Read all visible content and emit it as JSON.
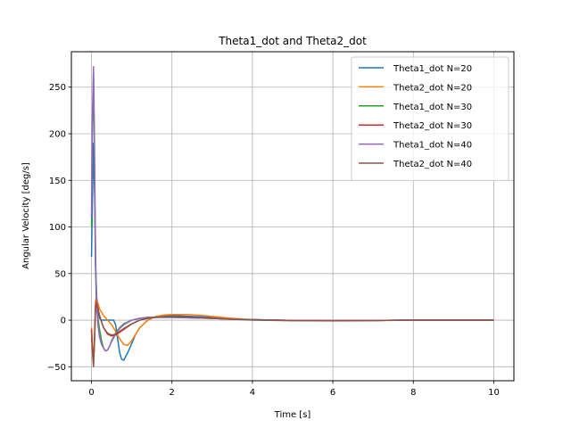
{
  "chart_data": {
    "type": "line",
    "title": "Theta1_dot and Theta2_dot",
    "xlabel": "Time [s]",
    "ylabel": "Angular Velocity [deg/s]",
    "xlim": [
      -0.5,
      10.5
    ],
    "ylim": [
      -65,
      288
    ],
    "xticks": [
      0,
      2,
      4,
      6,
      8,
      10
    ],
    "yticks": [
      -50,
      0,
      50,
      100,
      150,
      200,
      250
    ],
    "grid": true,
    "legend_position": "top-right",
    "series": [
      {
        "name": "Theta1_dot N=20",
        "color": "#1f77b4",
        "x": [
          0,
          0.02,
          0.05,
          0.08,
          0.1,
          0.13,
          0.16,
          0.2,
          0.25,
          0.3,
          0.35,
          0.4,
          0.5,
          0.55,
          0.6,
          0.65,
          0.7,
          0.75,
          0.8,
          0.9,
          1.0,
          1.1,
          1.2,
          1.4,
          1.6,
          1.8,
          2.0,
          2.5,
          3.0,
          3.5,
          4.0,
          5.0,
          6.0,
          7.0,
          8.0,
          9.0,
          10.0
        ],
        "y": [
          68,
          120,
          190,
          130,
          60,
          25,
          10,
          2,
          0,
          0,
          0,
          0,
          0,
          0,
          -5,
          -20,
          -35,
          -42,
          -43,
          -35,
          -25,
          -15,
          -8,
          0,
          4,
          5,
          5,
          4,
          3,
          1,
          0,
          -0.5,
          -0.5,
          -0.3,
          0,
          0,
          0
        ]
      },
      {
        "name": "Theta2_dot N=20",
        "color": "#ff7f0e",
        "x": [
          0,
          0.02,
          0.05,
          0.08,
          0.1,
          0.12,
          0.15,
          0.2,
          0.3,
          0.4,
          0.5,
          0.6,
          0.7,
          0.8,
          0.9,
          1.0,
          1.1,
          1.2,
          1.4,
          1.6,
          1.8,
          2.0,
          2.4,
          2.8,
          3.0,
          3.5,
          4.0,
          5.0,
          6.0,
          7.0,
          8.0,
          9.0,
          10.0
        ],
        "y": [
          -8,
          -25,
          -45,
          -10,
          20,
          25,
          20,
          12,
          5,
          0,
          -5,
          -12,
          -20,
          -26,
          -27,
          -22,
          -15,
          -8,
          0,
          4,
          5.5,
          6,
          6,
          5,
          4,
          2,
          0.5,
          -0.5,
          -0.8,
          -0.5,
          0,
          0,
          0
        ]
      },
      {
        "name": "Theta1_dot N=30",
        "color": "#2ca02c",
        "x": [
          0,
          0.02,
          0.05,
          0.08,
          0.1,
          0.12,
          0.15,
          0.2,
          0.25,
          0.3,
          0.35,
          0.4,
          0.45,
          0.5,
          0.6,
          0.7,
          0.8,
          1.0,
          1.2,
          1.4,
          1.6,
          1.8,
          2.0,
          2.5,
          3.0,
          3.5,
          4.0,
          5.0,
          6.0,
          7.0,
          8.0,
          9.0,
          10.0
        ],
        "y": [
          100,
          200,
          265,
          150,
          60,
          20,
          5,
          -10,
          -22,
          -30,
          -33,
          -32,
          -28,
          -22,
          -14,
          -8,
          -4,
          0,
          2,
          3,
          3,
          3,
          3,
          2.5,
          2,
          1,
          0.5,
          -0.3,
          -0.5,
          -0.3,
          0,
          0,
          0
        ]
      },
      {
        "name": "Theta2_dot N=30",
        "color": "#d62728",
        "x": [
          0,
          0.02,
          0.05,
          0.08,
          0.1,
          0.12,
          0.15,
          0.2,
          0.25,
          0.3,
          0.4,
          0.5,
          0.6,
          0.7,
          0.8,
          1.0,
          1.2,
          1.4,
          1.6,
          1.8,
          2.0,
          2.5,
          3.0,
          3.5,
          4.0,
          5.0,
          6.0,
          7.0,
          8.0,
          9.0,
          10.0
        ],
        "y": [
          -10,
          -30,
          -48,
          -15,
          15,
          20,
          15,
          5,
          -2,
          -8,
          -15,
          -17,
          -16,
          -13,
          -10,
          -4,
          0,
          2,
          3,
          3.5,
          3.5,
          3,
          2,
          1,
          0.5,
          -0.3,
          -0.5,
          -0.3,
          0,
          0,
          0
        ]
      },
      {
        "name": "Theta1_dot N=40",
        "color": "#9467bd",
        "x": [
          0,
          0.02,
          0.05,
          0.07,
          0.09,
          0.11,
          0.13,
          0.16,
          0.2,
          0.25,
          0.3,
          0.35,
          0.4,
          0.45,
          0.5,
          0.6,
          0.7,
          0.8,
          1.0,
          1.2,
          1.4,
          1.6,
          1.8,
          2.0,
          2.5,
          3.0,
          3.5,
          4.0,
          5.0,
          6.0,
          7.0,
          8.0,
          9.0,
          10.0
        ],
        "y": [
          110,
          215,
          272,
          210,
          110,
          50,
          15,
          -5,
          -18,
          -26,
          -30,
          -33,
          -32,
          -28,
          -23,
          -15,
          -9,
          -5,
          0,
          2,
          3,
          3,
          3,
          3,
          2.5,
          2,
          1,
          0.5,
          -0.3,
          -0.5,
          -0.3,
          0,
          0,
          0
        ]
      },
      {
        "name": "Theta2_dot N=40",
        "color": "#8c564b",
        "x": [
          0,
          0.02,
          0.05,
          0.08,
          0.1,
          0.12,
          0.15,
          0.2,
          0.25,
          0.3,
          0.4,
          0.5,
          0.6,
          0.7,
          0.8,
          1.0,
          1.2,
          1.4,
          1.6,
          1.8,
          2.0,
          2.5,
          3.0,
          3.5,
          4.0,
          5.0,
          6.0,
          7.0,
          8.0,
          9.0,
          10.0
        ],
        "y": [
          -12,
          -32,
          -50,
          -18,
          12,
          18,
          14,
          5,
          -2,
          -8,
          -14,
          -16,
          -15,
          -12,
          -9,
          -4,
          0,
          2,
          3,
          3.5,
          3.5,
          3,
          2,
          1,
          0.5,
          -0.3,
          -0.5,
          -0.3,
          0,
          0,
          0
        ]
      }
    ]
  }
}
